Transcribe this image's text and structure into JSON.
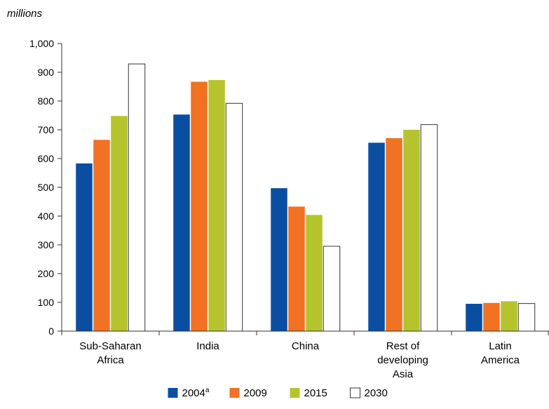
{
  "chart_data": {
    "type": "bar",
    "unit_label": "millions",
    "categories": [
      [
        "Sub-Saharan",
        "Africa"
      ],
      [
        "India"
      ],
      [
        "China"
      ],
      [
        "Rest of",
        "developing",
        "Asia"
      ],
      [
        "Latin",
        "America"
      ]
    ],
    "series": [
      {
        "name": "2004",
        "superscript": "a",
        "color": "#0a4ea2",
        "values": [
          583,
          753,
          497,
          655,
          95
        ]
      },
      {
        "name": "2009",
        "superscript": "",
        "color": "#f07222",
        "values": [
          665,
          867,
          433,
          671,
          98
        ]
      },
      {
        "name": "2015",
        "superscript": "",
        "color": "#b5c42c",
        "values": [
          748,
          873,
          404,
          700,
          104
        ]
      },
      {
        "name": "2030",
        "superscript": "",
        "color": "#ffffff",
        "values": [
          929,
          792,
          295,
          718,
          96
        ]
      }
    ],
    "ylim": [
      0,
      1000
    ],
    "yticks": [
      0,
      100,
      200,
      300,
      400,
      500,
      600,
      700,
      800,
      900,
      1000
    ],
    "ytick_labels": [
      "0",
      "100",
      "200",
      "300",
      "400",
      "500",
      "600",
      "700",
      "800",
      "900",
      "1,000"
    ],
    "legend_position": "bottom-center",
    "grid": false
  }
}
